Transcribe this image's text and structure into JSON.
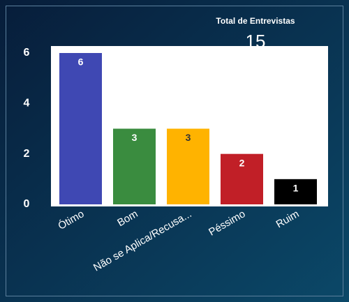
{
  "kpi": {
    "label": "Total de Entrevistas",
    "value": 15
  },
  "chart_data": {
    "type": "bar",
    "categories": [
      "Ótimo",
      "Bom",
      "Não se Aplica/Recusa...",
      "Péssimo",
      "Ruim"
    ],
    "values": [
      6,
      3,
      3,
      2,
      1
    ],
    "colors": [
      "#3f48b3",
      "#3a8c3f",
      "#ffb300",
      "#c11f27",
      "#000000"
    ],
    "label_colors": [
      "#ffffff",
      "#ffffff",
      "#333333",
      "#ffffff",
      "#ffffff"
    ],
    "ylim": [
      0,
      6
    ],
    "yticks": [
      0,
      2,
      4,
      6
    ],
    "grid": false
  }
}
